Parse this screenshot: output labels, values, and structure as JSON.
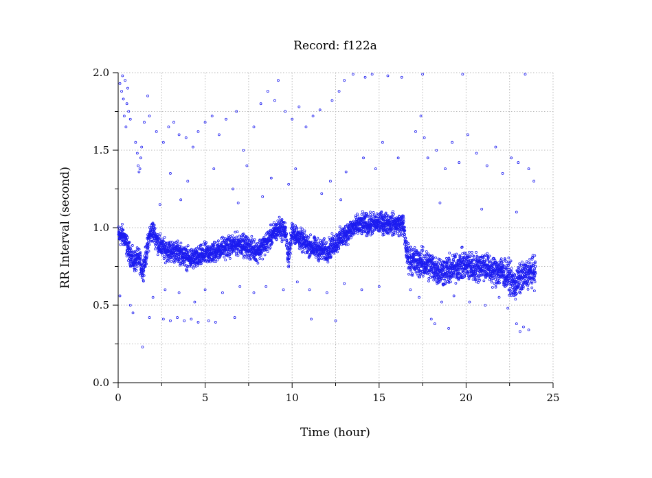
{
  "chart_data": {
    "type": "scatter",
    "title": "Record:  f122a",
    "xlabel": "Time (hour)",
    "ylabel": "RR Interval (second)",
    "xlim": [
      0,
      25
    ],
    "ylim": [
      0,
      2.0
    ],
    "xticks": [
      0,
      5,
      10,
      15,
      20,
      25
    ],
    "xtick_labels": [
      "0",
      "5",
      "10",
      "15",
      "20",
      "25"
    ],
    "yticks": [
      0.0,
      0.5,
      1.0,
      1.5,
      2.0
    ],
    "ytick_labels": [
      "0.0",
      "0.5",
      "1.0",
      "1.5",
      "2.0"
    ],
    "grid": true,
    "marker_color": "#1c1cf0",
    "series": [
      {
        "baseline_trend": [
          [
            0.0,
            0.95
          ],
          [
            0.3,
            0.95
          ],
          [
            0.6,
            0.85
          ],
          [
            0.9,
            0.78
          ],
          [
            1.2,
            0.8
          ],
          [
            1.4,
            0.72
          ],
          [
            1.6,
            0.82
          ],
          [
            1.8,
            0.95
          ],
          [
            2.0,
            0.98
          ],
          [
            2.3,
            0.9
          ],
          [
            2.6,
            0.86
          ],
          [
            3.0,
            0.85
          ],
          [
            3.5,
            0.84
          ],
          [
            4.0,
            0.8
          ],
          [
            4.5,
            0.8
          ],
          [
            5.0,
            0.83
          ],
          [
            5.5,
            0.84
          ],
          [
            6.0,
            0.87
          ],
          [
            6.5,
            0.88
          ],
          [
            7.0,
            0.9
          ],
          [
            7.5,
            0.87
          ],
          [
            8.0,
            0.85
          ],
          [
            8.5,
            0.9
          ],
          [
            9.0,
            0.97
          ],
          [
            9.3,
            1.0
          ],
          [
            9.6,
            0.98
          ],
          [
            9.8,
            0.8
          ],
          [
            10.0,
            0.98
          ],
          [
            10.5,
            0.92
          ],
          [
            11.0,
            0.88
          ],
          [
            11.5,
            0.86
          ],
          [
            12.0,
            0.85
          ],
          [
            12.5,
            0.9
          ],
          [
            13.0,
            0.95
          ],
          [
            13.5,
            1.0
          ],
          [
            14.0,
            1.02
          ],
          [
            14.5,
            1.02
          ],
          [
            15.0,
            1.03
          ],
          [
            15.5,
            1.03
          ],
          [
            16.0,
            1.02
          ],
          [
            16.4,
            1.02
          ],
          [
            16.6,
            0.82
          ],
          [
            17.0,
            0.78
          ],
          [
            17.5,
            0.77
          ],
          [
            18.0,
            0.75
          ],
          [
            18.5,
            0.72
          ],
          [
            19.0,
            0.72
          ],
          [
            19.5,
            0.75
          ],
          [
            20.0,
            0.76
          ],
          [
            20.5,
            0.74
          ],
          [
            21.0,
            0.76
          ],
          [
            21.5,
            0.72
          ],
          [
            22.0,
            0.72
          ],
          [
            22.5,
            0.68
          ],
          [
            22.8,
            0.62
          ],
          [
            23.0,
            0.66
          ],
          [
            23.5,
            0.7
          ],
          [
            24.0,
            0.72
          ]
        ],
        "outlier_points": [
          [
            0.1,
            1.93
          ],
          [
            0.2,
            1.88
          ],
          [
            0.3,
            1.83
          ],
          [
            0.4,
            1.95
          ],
          [
            0.5,
            1.8
          ],
          [
            0.6,
            1.75
          ],
          [
            0.7,
            1.7
          ],
          [
            0.25,
            1.98
          ],
          [
            0.55,
            1.9
          ],
          [
            0.35,
            1.72
          ],
          [
            0.45,
            1.65
          ],
          [
            1.0,
            1.55
          ],
          [
            1.1,
            1.48
          ],
          [
            1.15,
            1.4
          ],
          [
            1.2,
            1.36
          ],
          [
            1.3,
            1.45
          ],
          [
            1.35,
            1.52
          ],
          [
            1.25,
            1.38
          ],
          [
            1.5,
            1.68
          ],
          [
            1.7,
            1.85
          ],
          [
            1.8,
            1.72
          ],
          [
            2.2,
            1.62
          ],
          [
            2.6,
            1.55
          ],
          [
            2.9,
            1.65
          ],
          [
            3.2,
            1.68
          ],
          [
            3.5,
            1.6
          ],
          [
            3.9,
            1.58
          ],
          [
            4.3,
            1.52
          ],
          [
            4.6,
            1.62
          ],
          [
            5.0,
            1.68
          ],
          [
            5.4,
            1.72
          ],
          [
            5.8,
            1.6
          ],
          [
            6.2,
            1.7
          ],
          [
            6.8,
            1.75
          ],
          [
            7.2,
            1.5
          ],
          [
            7.8,
            1.65
          ],
          [
            8.2,
            1.8
          ],
          [
            8.6,
            1.88
          ],
          [
            9.0,
            1.82
          ],
          [
            9.2,
            1.95
          ],
          [
            9.6,
            1.75
          ],
          [
            10.0,
            1.7
          ],
          [
            10.4,
            1.78
          ],
          [
            10.8,
            1.65
          ],
          [
            11.2,
            1.72
          ],
          [
            11.6,
            1.76
          ],
          [
            12.3,
            1.82
          ],
          [
            12.7,
            1.88
          ],
          [
            13.0,
            1.95
          ],
          [
            13.5,
            1.99
          ],
          [
            14.2,
            1.97
          ],
          [
            14.6,
            1.99
          ],
          [
            15.5,
            1.98
          ],
          [
            16.3,
            1.97
          ],
          [
            17.5,
            1.99
          ],
          [
            19.8,
            1.99
          ],
          [
            23.4,
            1.99
          ],
          [
            3.0,
            1.35
          ],
          [
            4.0,
            1.3
          ],
          [
            5.5,
            1.38
          ],
          [
            6.6,
            1.25
          ],
          [
            7.4,
            1.4
          ],
          [
            8.8,
            1.32
          ],
          [
            9.8,
            1.28
          ],
          [
            10.2,
            1.38
          ],
          [
            11.7,
            1.22
          ],
          [
            12.2,
            1.3
          ],
          [
            13.1,
            1.36
          ],
          [
            14.1,
            1.45
          ],
          [
            14.8,
            1.38
          ],
          [
            15.2,
            1.55
          ],
          [
            16.1,
            1.45
          ],
          [
            17.1,
            1.62
          ],
          [
            17.4,
            1.72
          ],
          [
            17.6,
            1.58
          ],
          [
            17.8,
            1.45
          ],
          [
            18.3,
            1.5
          ],
          [
            18.8,
            1.38
          ],
          [
            19.2,
            1.55
          ],
          [
            19.6,
            1.42
          ],
          [
            20.1,
            1.6
          ],
          [
            20.6,
            1.48
          ],
          [
            21.2,
            1.4
          ],
          [
            21.7,
            1.52
          ],
          [
            22.1,
            1.35
          ],
          [
            22.6,
            1.45
          ],
          [
            23.0,
            1.42
          ],
          [
            23.6,
            1.38
          ],
          [
            23.9,
            1.3
          ],
          [
            2.4,
            1.15
          ],
          [
            3.6,
            1.18
          ],
          [
            6.9,
            1.16
          ],
          [
            8.3,
            1.2
          ],
          [
            12.8,
            1.18
          ],
          [
            18.5,
            1.16
          ],
          [
            20.9,
            1.12
          ],
          [
            22.9,
            1.1
          ],
          [
            0.1,
            0.56
          ],
          [
            0.7,
            0.5
          ],
          [
            0.85,
            0.45
          ],
          [
            1.8,
            0.42
          ],
          [
            2.6,
            0.41
          ],
          [
            3.0,
            0.4
          ],
          [
            3.4,
            0.42
          ],
          [
            3.8,
            0.4
          ],
          [
            4.2,
            0.41
          ],
          [
            4.6,
            0.39
          ],
          [
            5.2,
            0.4
          ],
          [
            5.6,
            0.39
          ],
          [
            6.7,
            0.42
          ],
          [
            1.4,
            0.23
          ],
          [
            11.1,
            0.41
          ],
          [
            12.5,
            0.4
          ],
          [
            18.0,
            0.41
          ],
          [
            18.2,
            0.38
          ],
          [
            19.0,
            0.35
          ],
          [
            22.9,
            0.38
          ],
          [
            23.1,
            0.33
          ],
          [
            23.3,
            0.36
          ],
          [
            23.6,
            0.34
          ],
          [
            2.0,
            0.55
          ],
          [
            2.7,
            0.6
          ],
          [
            3.5,
            0.58
          ],
          [
            4.4,
            0.52
          ],
          [
            5.0,
            0.6
          ],
          [
            6.0,
            0.58
          ],
          [
            7.0,
            0.62
          ],
          [
            7.8,
            0.58
          ],
          [
            8.5,
            0.62
          ],
          [
            9.5,
            0.6
          ],
          [
            10.3,
            0.65
          ],
          [
            11.0,
            0.6
          ],
          [
            12.0,
            0.58
          ],
          [
            13.0,
            0.64
          ],
          [
            14.0,
            0.6
          ],
          [
            15.0,
            0.62
          ],
          [
            16.8,
            0.6
          ],
          [
            17.3,
            0.55
          ],
          [
            18.6,
            0.52
          ],
          [
            19.3,
            0.56
          ],
          [
            20.2,
            0.52
          ],
          [
            21.1,
            0.5
          ],
          [
            21.9,
            0.55
          ],
          [
            22.4,
            0.48
          ]
        ]
      }
    ]
  }
}
